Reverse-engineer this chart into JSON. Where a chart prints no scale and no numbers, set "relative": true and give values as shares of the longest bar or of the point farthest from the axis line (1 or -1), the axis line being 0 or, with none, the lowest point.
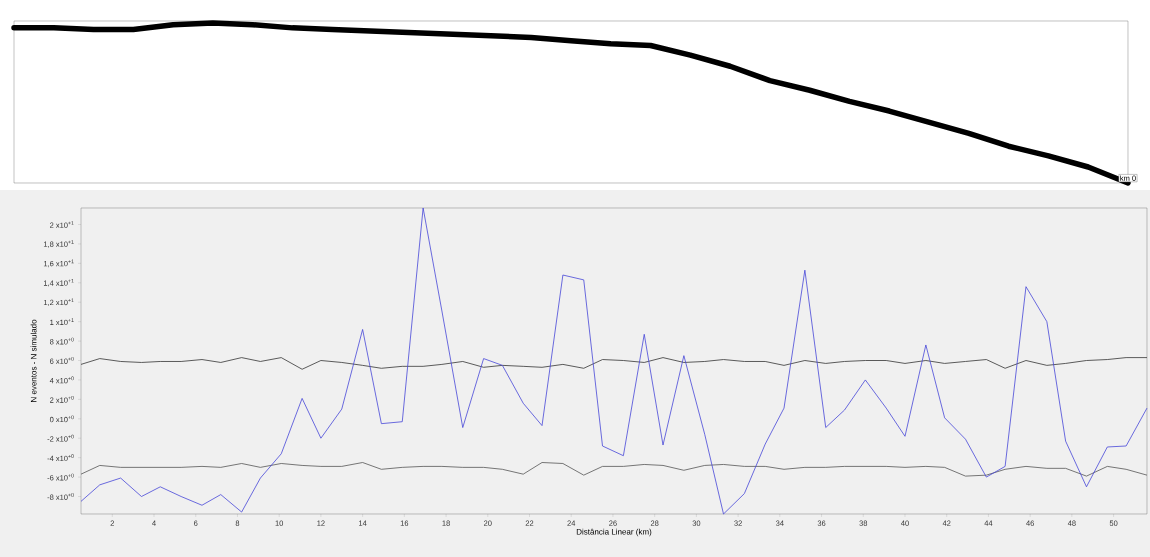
{
  "chart_data": [
    {
      "type": "line",
      "relative": true,
      "categories": [
        null,
        null,
        null,
        null,
        null,
        null,
        null,
        null,
        null,
        null,
        null,
        null,
        null,
        null,
        null,
        null,
        null,
        null,
        null,
        null,
        null,
        null,
        null,
        null,
        null,
        null,
        null,
        null,
        null
      ],
      "series": [
        {
          "color": "#000000",
          "values": [
            0.97,
            0.97,
            0.96,
            0.96,
            0.99,
            1.0,
            0.99,
            0.97,
            0.96,
            0.95,
            0.94,
            0.93,
            0.92,
            0.91,
            0.89,
            0.87,
            0.86,
            0.8,
            0.73,
            0.64,
            0.58,
            0.51,
            0.45,
            0.38,
            0.31,
            0.23,
            0.17,
            0.1,
            0
          ]
        }
      ],
      "annotations": [
        "km 0"
      ]
    },
    {
      "type": "line",
      "xlabel": "Distância Linear (km)",
      "ylabel": "N eventos - N simulado",
      "x": [
        0.5,
        1.4,
        2.4,
        3.4,
        4.3,
        5.3,
        6.3,
        7.2,
        8.2,
        9.1,
        10.1,
        11.1,
        12.0,
        13.0,
        14.0,
        14.9,
        15.9,
        16.9,
        17.8,
        18.8,
        19.8,
        20.7,
        21.7,
        22.6,
        23.6,
        24.6,
        25.5,
        26.5,
        27.5,
        28.4,
        29.4,
        30.4,
        31.3,
        32.3,
        33.3,
        34.2,
        35.2,
        36.2,
        37.1,
        38.1,
        39.1,
        40.0,
        41.0,
        41.9,
        42.9,
        43.9,
        44.8,
        45.8,
        46.8,
        47.7,
        48.7,
        49.7,
        50.6,
        51.6
      ],
      "xlim": [
        0.5,
        51.6
      ],
      "ylim": [
        -9.8,
        21.7
      ],
      "xticks": [
        2,
        4,
        6,
        8,
        10,
        12,
        14,
        16,
        18,
        20,
        22,
        24,
        26,
        28,
        30,
        32,
        34,
        36,
        38,
        40,
        42,
        44,
        46,
        48,
        50
      ],
      "yticks": [
        {
          "value": -8,
          "label": "-8 x10$^{+0}$"
        },
        {
          "value": -6,
          "label": "-6 x10$^{+0}$"
        },
        {
          "value": -4,
          "label": "-4 x10$^{+0}$"
        },
        {
          "value": -2,
          "label": "-2 x10$^{+0}$"
        },
        {
          "value": 0,
          "label": "0 x10$^{+0}$"
        },
        {
          "value": 2,
          "label": "2 x10$^{+0}$"
        },
        {
          "value": 4,
          "label": "4 x10$^{+0}$"
        },
        {
          "value": 6,
          "label": "6 x10$^{+0}$"
        },
        {
          "value": 8,
          "label": "8 x10$^{+0}$"
        },
        {
          "value": 10,
          "label": "1 x10$^{+1}$"
        },
        {
          "value": 12,
          "label": "1,2 x10$^{+1}$"
        },
        {
          "value": 14,
          "label": "1,4 x10$^{+1}$"
        },
        {
          "value": 16,
          "label": "1,6 x10$^{+1}$"
        },
        {
          "value": 18,
          "label": "1,8 x10$^{+1}$"
        },
        {
          "value": 20,
          "label": "2 x10$^{+1}$"
        }
      ],
      "series": [
        {
          "color": "#333333",
          "values": [
            5.6,
            6.2,
            5.9,
            5.8,
            5.9,
            5.9,
            6.1,
            5.8,
            6.3,
            5.9,
            6.3,
            5.1,
            6.0,
            5.8,
            5.5,
            5.2,
            5.4,
            5.4,
            5.6,
            5.9,
            5.3,
            5.5,
            5.4,
            5.3,
            5.6,
            5.2,
            6.1,
            6.0,
            5.8,
            6.3,
            5.8,
            5.9,
            6.1,
            5.9,
            5.9,
            5.5,
            6.0,
            5.7,
            5.9,
            6.0,
            6.0,
            5.7,
            6.0,
            5.7,
            5.9,
            6.1,
            5.2,
            6.0,
            5.5,
            5.7,
            6.0,
            6.1,
            6.3,
            6.3
          ]
        },
        {
          "color": "#555555",
          "values": [
            -5.7,
            -4.8,
            -5.0,
            -5.0,
            -5.0,
            -5.0,
            -4.9,
            -5.0,
            -4.6,
            -5.0,
            -4.6,
            -4.8,
            -4.9,
            -4.9,
            -4.5,
            -5.2,
            -5.0,
            -4.9,
            -4.9,
            -5.0,
            -5.0,
            -5.2,
            -5.7,
            -4.5,
            -4.6,
            -5.8,
            -4.9,
            -4.9,
            -4.7,
            -4.8,
            -5.3,
            -4.8,
            -4.7,
            -4.9,
            -4.9,
            -5.2,
            -5.0,
            -5.0,
            -4.9,
            -4.9,
            -4.9,
            -5.0,
            -4.9,
            -5.0,
            -5.9,
            -5.8,
            -5.2,
            -4.9,
            -5.1,
            -5.1,
            -5.9,
            -4.9,
            -5.2,
            -5.8
          ]
        },
        {
          "color": "#4646d8",
          "values": [
            -8.5,
            -6.8,
            -6.1,
            -8.0,
            -7.0,
            -8.0,
            -8.9,
            -7.8,
            -9.6,
            -6.1,
            -3.6,
            2.1,
            -2.0,
            1.0,
            9.2,
            -0.5,
            -0.3,
            21.7,
            11.1,
            -0.9,
            6.2,
            5.5,
            1.6,
            -0.7,
            14.8,
            14.3,
            -2.8,
            -3.8,
            8.7,
            -2.7,
            6.5,
            -1.6,
            -9.8,
            -7.7,
            -2.6,
            1.1,
            15.3,
            -0.9,
            0.9,
            4.0,
            1.1,
            -1.8,
            7.6,
            0.1,
            -2.1,
            -6.0,
            -4.9,
            13.6,
            10.0,
            -2.3,
            -7.0,
            -2.9,
            -2.8,
            1.1
          ]
        }
      ]
    }
  ]
}
